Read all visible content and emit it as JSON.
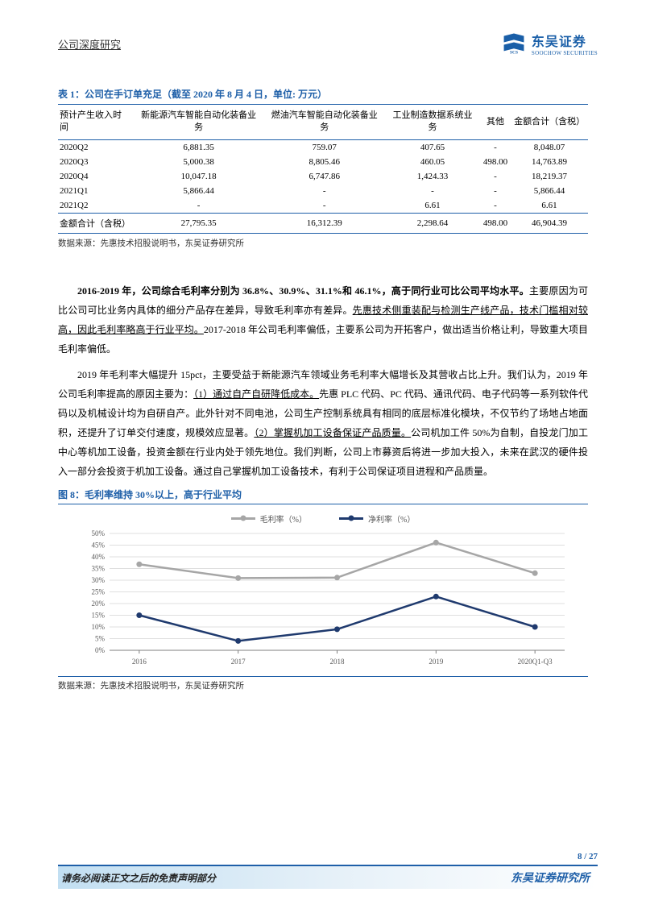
{
  "header": {
    "title": "公司深度研究",
    "logo_cn": "东吴证券",
    "logo_en": "SOOCHOW SECURITIES"
  },
  "table1": {
    "title": "表 1：公司在手订单充足（截至 2020 年 8 月 4 日，单位: 万元）",
    "columns": [
      "预计产生收入时间",
      "新能源汽车智能自动化装备业务",
      "燃油汽车智能自动化装备业务",
      "工业制造数据系统业务",
      "其他",
      "金额合计（含税）"
    ],
    "rows": [
      [
        "2020Q2",
        "6,881.35",
        "759.07",
        "407.65",
        "-",
        "8,048.07"
      ],
      [
        "2020Q3",
        "5,000.38",
        "8,805.46",
        "460.05",
        "498.00",
        "14,763.89"
      ],
      [
        "2020Q4",
        "10,047.18",
        "6,747.86",
        "1,424.33",
        "-",
        "18,219.37"
      ],
      [
        "2021Q1",
        "5,866.44",
        "-",
        "-",
        "-",
        "5,866.44"
      ],
      [
        "2021Q2",
        "-",
        "-",
        "6.61",
        "-",
        "6.61"
      ]
    ],
    "total": [
      "金额合计（含税）",
      "27,795.35",
      "16,312.39",
      "2,298.64",
      "498.00",
      "46,904.39"
    ],
    "source": "数据来源：先惠技术招股说明书，东吴证券研究所"
  },
  "paragraphs": {
    "p1_bold": "2016-2019 年，公司综合毛利率分别为 36.8%、30.9%、31.1%和 46.1%，高于同行业可比公司平均水平。",
    "p1_rest_a": "主要原因为可比公司可比业务内具体的细分产品存在差异，导致毛利率亦有差异。",
    "p1_ul": "先惠技术侧重装配与检测生产线产品，技术门槛相对较高，因此毛利率略高于行业平均。",
    "p1_rest_b": "2017-2018 年公司毛利率偏低，主要系公司为开拓客户，做出适当价格让利，导致重大项目毛利率偏低。",
    "p2_a": "2019 年毛利率大幅提升 15pct，主要受益于新能源汽车领域业务毛利率大幅增长及其营收占比上升。我们认为，2019 年公司毛利率提高的原因主要为：",
    "p2_ul1": "（1）通过自产自研降低成本。",
    "p2_b": "先惠 PLC 代码、PC 代码、通讯代码、电子代码等一系列软件代码以及机械设计均为自研自产。此外针对不同电池，公司生产控制系统具有相同的底层标准化模块，不仅节约了场地占地面积，还提升了订单交付速度，规模效应显著。",
    "p2_ul2": "（2）掌握机加工设备保证产品质量。",
    "p2_c": "公司机加工件 50%为自制，自投龙门加工中心等机加工设备，投资金额在行业内处于领先地位。我们判断，公司上市募资后将进一步加大投入，未来在武汉的硬件投入一部分会投资于机加工设备。通过自己掌握机加工设备技术，有利于公司保证项目进程和产品质量。"
  },
  "chart": {
    "title": "图 8：毛利率维持 30%以上，高于行业平均",
    "legend": [
      "毛利率（%）",
      "净利率（%）"
    ],
    "categories": [
      "2016",
      "2017",
      "2018",
      "2019",
      "2020Q1-Q3"
    ],
    "gross": [
      36.8,
      30.9,
      31.1,
      46.1,
      33
    ],
    "net": [
      15,
      4,
      9,
      23,
      10
    ],
    "ylim": [
      0,
      50
    ],
    "ytick_step": 5,
    "gross_color": "#a6a6a6",
    "net_color": "#1f3a6e",
    "grid_color": "#bfbfbf",
    "axis_color": "#7f7f7f",
    "label_color": "#595959",
    "source": "数据来源：先惠技术招股说明书，东吴证券研究所"
  },
  "footer": {
    "page": "8 / 27",
    "left": "请务必阅读正文之后的免责声明部分",
    "right": "东吴证券研究所"
  }
}
